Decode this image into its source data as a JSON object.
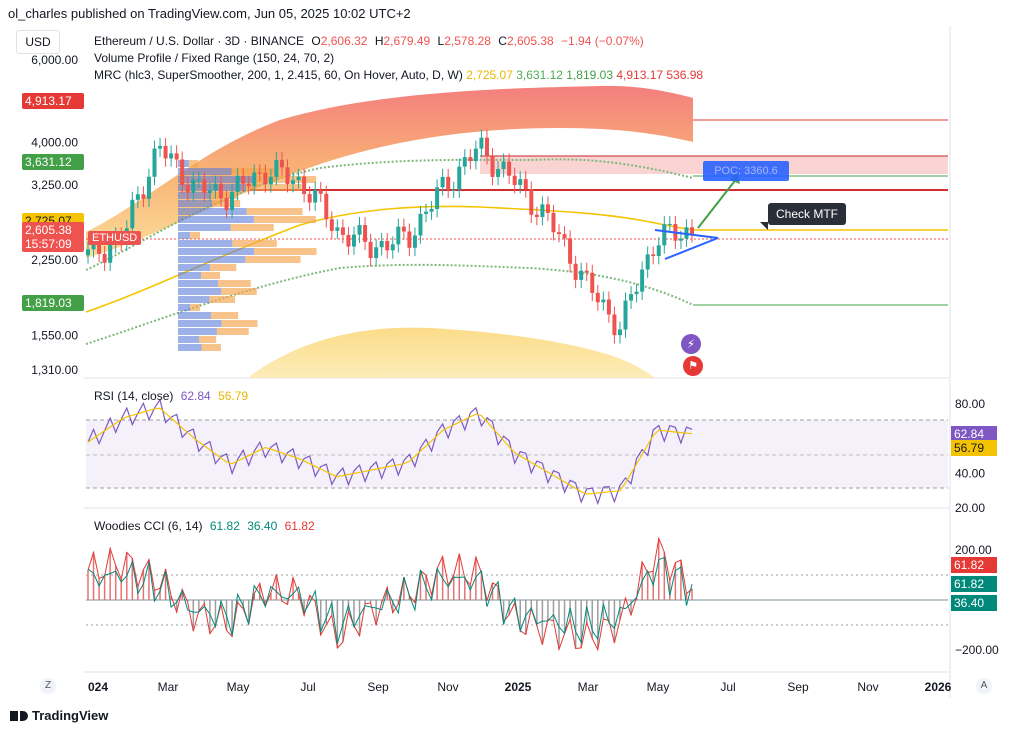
{
  "header": {
    "publisher_line": "ol_charles published on TradingView.com, Jun 05, 2025 10:02 UTC+2"
  },
  "currency_label": "USD",
  "legend": {
    "symbol": "Ethereum / U.S. Dollar · 3D · BINANCE",
    "ohlc": {
      "o_label": "O",
      "o": "2,606.32",
      "h_label": "H",
      "h": "2,679.49",
      "l_label": "L",
      "l": "2,578.28",
      "c_label": "C",
      "c": "2,605.38",
      "chg": "−1.94 (−0.07%)"
    },
    "volume_profile": "Volume Profile / Fixed Range (150, 24, 70, 2)",
    "mrc": "MRC (hlc3, SuperSmoother, 200, 1, 2.415, 60, On Hover, Auto, D, W)",
    "mrc_values": [
      "2,725.07",
      "3,631.12",
      "1,819.03",
      "4,913.17",
      "536.98"
    ],
    "mrc_colors": [
      "#e6b800",
      "#4caf50",
      "#43a047",
      "#e53935",
      "#e53935"
    ]
  },
  "price_axis": {
    "ticks": [
      "6,000.00",
      "4,000.00",
      "3,250.00",
      "2,250.00",
      "1,550.00",
      "1,310.00"
    ],
    "badges": [
      {
        "label": "4,913.17",
        "color": "#e53935"
      },
      {
        "label": "3,631.12",
        "color": "#43a047"
      },
      {
        "label": "2,725.07",
        "color": "#f5c400"
      },
      {
        "label": "2,605.38",
        "color": "#ef5350",
        "sub": "15:57:09"
      },
      {
        "label": "1,819.03",
        "color": "#43a047"
      }
    ],
    "symbol_tag": "ETHUSD"
  },
  "annotations": {
    "poc": "POC: 3360.6",
    "check_mtf": "Check MTF"
  },
  "rsi": {
    "title": "RSI (14, close)",
    "value1": "62.84",
    "value2": "56.79",
    "ticks": [
      "80.00",
      "40.00",
      "20.00"
    ],
    "badges": [
      {
        "label": "62.84",
        "color": "#7e57c2"
      },
      {
        "label": "56.79",
        "color": "#f5c400"
      }
    ]
  },
  "cci": {
    "title": "Woodies CCI (6, 14)",
    "value1": "61.82",
    "value2": "36.40",
    "value3": "61.82",
    "ticks": [
      "200.00",
      "−200.00"
    ],
    "badges": [
      {
        "label": "61.82",
        "color": "#e53935"
      },
      {
        "label": "61.82",
        "color": "#00897b"
      },
      {
        "label": "36.40",
        "color": "#00897b"
      }
    ]
  },
  "time_axis": {
    "labels": [
      "024",
      "Mar",
      "May",
      "Jul",
      "Sep",
      "Nov",
      "2025",
      "Mar",
      "May",
      "Jul",
      "Sep",
      "Nov",
      "2026"
    ],
    "left_btn": "Z",
    "right_btn": "A"
  },
  "footer": {
    "brand": "TradingView"
  },
  "chart_data": {
    "type": "line",
    "title": "Ethereum / U.S. Dollar · 3D · BINANCE",
    "price_scale": "log",
    "ylim": [
      1310,
      6000
    ],
    "x": [
      "2024-01",
      "2024-02",
      "2024-03",
      "2024-04",
      "2024-05",
      "2024-06",
      "2024-07",
      "2024-08",
      "2024-09",
      "2024-10",
      "2024-11",
      "2024-12",
      "2025-01",
      "2025-02",
      "2025-03",
      "2025-04",
      "2025-05",
      "2025-06"
    ],
    "series": [
      {
        "values": [
          2300,
          2500,
          3900,
          3200,
          3100,
          3500,
          3300,
          2600,
          2400,
          2500,
          3200,
          3900,
          3300,
          2700,
          2000,
          1600,
          2500,
          2605
        ]
      }
    ],
    "levels": [
      4913.17,
      3631.12,
      3360.6,
      2725.07,
      2605.38,
      1819.03
    ],
    "rsi": {
      "ylim": [
        20,
        80
      ],
      "values": [
        58,
        72,
        78,
        60,
        45,
        55,
        48,
        38,
        42,
        46,
        65,
        75,
        52,
        40,
        28,
        30,
        65,
        62.84
      ]
    },
    "cci": {
      "ylim": [
        -200,
        200
      ],
      "values": [
        120,
        150,
        80,
        -60,
        -100,
        40,
        20,
        -150,
        -40,
        30,
        120,
        110,
        -80,
        -120,
        -160,
        -90,
        200,
        61.82
      ]
    }
  }
}
